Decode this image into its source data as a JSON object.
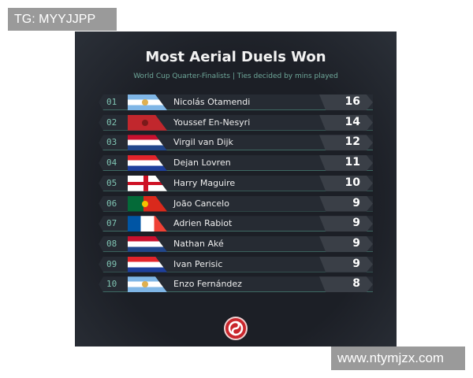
{
  "watermarks": {
    "top_left": "TG: MYYJJPP",
    "bottom_right": "www.ntymjzx.com"
  },
  "header": {
    "title": "Most Aerial Duels Won",
    "subtitle": "World Cup Quarter-Finalists | Ties decided by mins played"
  },
  "rows": [
    {
      "rank": "01",
      "flag": "argentina",
      "name": "Nicolás Otamendi",
      "score": "16"
    },
    {
      "rank": "02",
      "flag": "morocco",
      "name": "Youssef En-Nesyri",
      "score": "14"
    },
    {
      "rank": "03",
      "flag": "netherlands",
      "name": "Virgil van Dijk",
      "score": "12"
    },
    {
      "rank": "04",
      "flag": "croatia",
      "name": "Dejan Lovren",
      "score": "11"
    },
    {
      "rank": "05",
      "flag": "england",
      "name": "Harry Maguire",
      "score": "10"
    },
    {
      "rank": "06",
      "flag": "portugal",
      "name": "João Cancelo",
      "score": "9"
    },
    {
      "rank": "07",
      "flag": "france",
      "name": "Adrien Rabiot",
      "score": "9"
    },
    {
      "rank": "08",
      "flag": "netherlands",
      "name": "Nathan Aké",
      "score": "9"
    },
    {
      "rank": "09",
      "flag": "croatia",
      "name": "Ivan Perisic",
      "score": "9"
    },
    {
      "rank": "10",
      "flag": "argentina",
      "name": "Enzo Fernández",
      "score": "8"
    }
  ],
  "colors": {
    "background": "#1c1f26",
    "accent": "#7fc3b2",
    "logo": "#c9262c"
  }
}
